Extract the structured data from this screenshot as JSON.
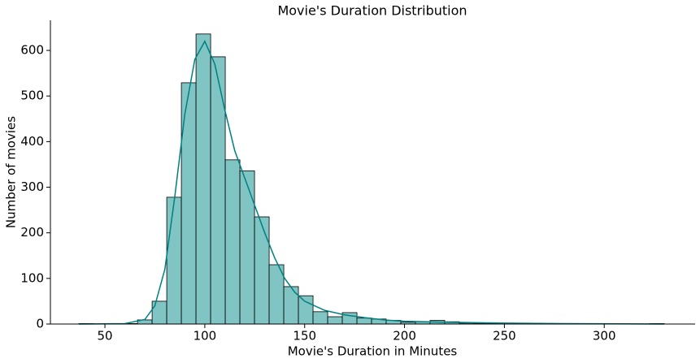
{
  "chart_data": {
    "type": "histogram",
    "title": "Movie's Duration Distribution",
    "x_label": "Movie's Duration in Minutes",
    "y_label": "Number of movies",
    "bins": [
      37,
      44.325,
      51.65,
      58.975,
      66.3,
      73.625,
      80.95,
      88.275,
      95.6,
      102.925,
      110.25,
      117.575,
      124.9,
      132.225,
      139.55,
      146.875,
      154.2,
      161.525,
      168.85,
      176.175,
      183.5,
      190.825,
      198.15,
      205.475,
      212.8,
      220.125,
      227.45,
      234.775,
      242.1,
      249.425,
      256.75,
      264.075,
      271.4,
      278.725,
      286.05,
      293.375,
      300.7,
      308.025,
      315.35,
      322.675,
      330
    ],
    "values": [
      1,
      0,
      0,
      1,
      9,
      50,
      278,
      529,
      636,
      586,
      360,
      336,
      235,
      130,
      82,
      62,
      27,
      16,
      25,
      13,
      11,
      8,
      4,
      5,
      8,
      5,
      2,
      1,
      1,
      1,
      0,
      0,
      1,
      0,
      0,
      0,
      0,
      0,
      0,
      1
    ],
    "color": "#80c4c4",
    "edge_color": "#000000",
    "kde": {
      "color": "#008080",
      "x": [
        37,
        60,
        70,
        75,
        80,
        85,
        90,
        95,
        100,
        105,
        110,
        115,
        120,
        125,
        130,
        135,
        140,
        145,
        150,
        160,
        170,
        180,
        190,
        200,
        220,
        250,
        280,
        330
      ],
      "y": [
        0,
        1,
        10,
        40,
        120,
        280,
        460,
        580,
        620,
        570,
        470,
        380,
        320,
        260,
        200,
        145,
        100,
        70,
        50,
        30,
        20,
        14,
        9,
        6,
        4,
        2,
        1,
        0
      ]
    },
    "xlim": [
      22.7,
      345.5
    ],
    "xticks": [
      50,
      100,
      150,
      200,
      250,
      300
    ],
    "ylim": [
      0,
      666
    ],
    "yticks": [
      0,
      100,
      200,
      300,
      400,
      500,
      600
    ]
  }
}
